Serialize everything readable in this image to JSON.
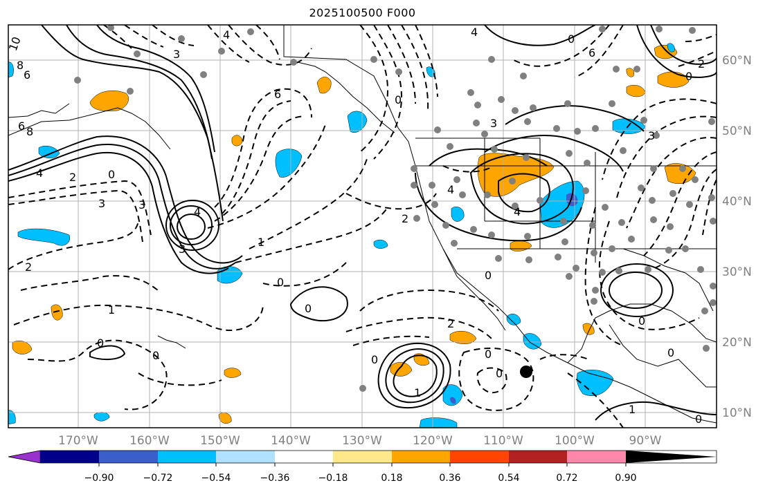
{
  "title": "2025100500 F000",
  "longitude_labels": [
    "170°W",
    "160°W",
    "150°W",
    "140°W",
    "130°W",
    "120°W",
    "110°W",
    "100°W",
    "90°W"
  ],
  "latitude_labels": [
    "60°N",
    "50°N",
    "40°N",
    "30°N",
    "20°N",
    "10°N"
  ],
  "colorbar": {
    "tick_labels": [
      "−0.90",
      "−0.72",
      "−0.54",
      "−0.36",
      "−0.18",
      "0.18",
      "0.36",
      "0.54",
      "0.72",
      "0.90"
    ],
    "colors": [
      "#9932cc",
      "#00008b",
      "#3a5fcd",
      "#00bfff",
      "#b0e2ff",
      "#ffffff",
      "#ffe88a",
      "#ffa500",
      "#ff4500",
      "#b22222",
      "#ff88aa"
    ]
  },
  "contour_labels": [
    "10",
    "8",
    "6",
    "8",
    "6",
    "4",
    "2",
    "0",
    "3",
    "3",
    "4",
    "3",
    "6",
    "4",
    "3",
    "1",
    "2",
    "1",
    "0",
    "0",
    "0",
    "0",
    "0",
    "0",
    "0",
    "2",
    "1",
    "0",
    "0",
    "0",
    "2",
    "3",
    "4",
    "6",
    "3",
    "4",
    "4",
    "0",
    "0",
    "2",
    "0",
    "1",
    "0"
  ],
  "features": {
    "dots_color": "#808080",
    "tc_marker": "black-dot"
  }
}
